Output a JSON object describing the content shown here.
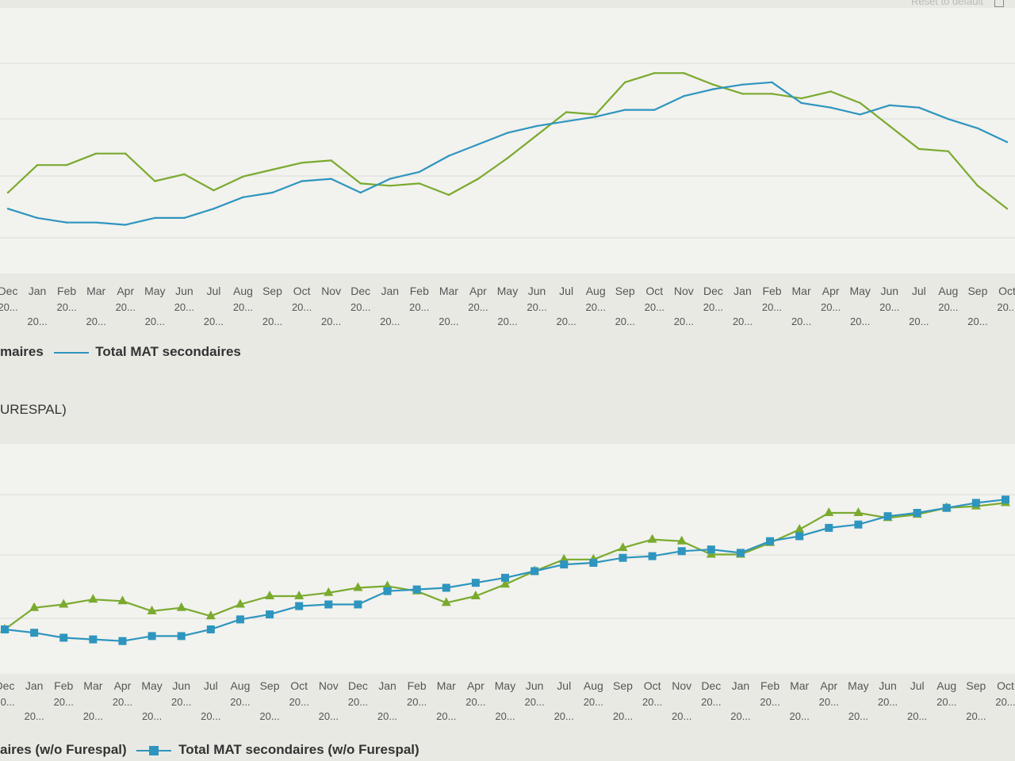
{
  "toolbar": {
    "reset_label": "Reset to default"
  },
  "colors": {
    "primary": "#7aaa2e",
    "secondary": "#2e95bf",
    "plot_bg": "#f2f2ee",
    "grid": "#dcdcd8"
  },
  "chart_data": [
    {
      "type": "line",
      "title": "",
      "markers": false,
      "categories": [
        {
          "month": "Dec",
          "year": "20..."
        },
        {
          "month": "Jan",
          "year": "20..."
        },
        {
          "month": "Feb",
          "year": "20..."
        },
        {
          "month": "Mar",
          "year": "20..."
        },
        {
          "month": "Apr",
          "year": "20..."
        },
        {
          "month": "May",
          "year": "20..."
        },
        {
          "month": "Jun",
          "year": "20..."
        },
        {
          "month": "Jul",
          "year": "20..."
        },
        {
          "month": "Aug",
          "year": "20..."
        },
        {
          "month": "Sep",
          "year": "20..."
        },
        {
          "month": "Oct",
          "year": "20..."
        },
        {
          "month": "Nov",
          "year": "20..."
        },
        {
          "month": "Dec",
          "year": "20..."
        },
        {
          "month": "Jan",
          "year": "20..."
        },
        {
          "month": "Feb",
          "year": "20..."
        },
        {
          "month": "Mar",
          "year": "20..."
        },
        {
          "month": "Apr",
          "year": "20..."
        },
        {
          "month": "May",
          "year": "20..."
        },
        {
          "month": "Jun",
          "year": "20..."
        },
        {
          "month": "Jul",
          "year": "20..."
        },
        {
          "month": "Aug",
          "year": "20..."
        },
        {
          "month": "Sep",
          "year": "20..."
        },
        {
          "month": "Oct",
          "year": "20..."
        },
        {
          "month": "Nov",
          "year": "20..."
        },
        {
          "month": "Dec",
          "year": "20..."
        },
        {
          "month": "Jan",
          "year": "20..."
        },
        {
          "month": "Feb",
          "year": "20..."
        },
        {
          "month": "Mar",
          "year": "20..."
        },
        {
          "month": "Apr",
          "year": "20..."
        },
        {
          "month": "May",
          "year": "20..."
        },
        {
          "month": "Jun",
          "year": "20..."
        },
        {
          "month": "Jul",
          "year": "20..."
        },
        {
          "month": "Aug",
          "year": "20..."
        },
        {
          "month": "Sep",
          "year": "20..."
        },
        {
          "month": "Oct",
          "year": "20..."
        }
      ],
      "series": [
        {
          "name": "Total MAT primaires",
          "legend_visible_text": "maires",
          "color": "#7aaa2e",
          "values": [
            30,
            42,
            42,
            47,
            47,
            35,
            38,
            31,
            37,
            40,
            43,
            44,
            34,
            33,
            34,
            29,
            36,
            45,
            55,
            65,
            64,
            78,
            82,
            82,
            77,
            73,
            73,
            71,
            74,
            69,
            59,
            49,
            48,
            33,
            23
          ]
        },
        {
          "name": "Total MAT secondaires",
          "legend_visible_text": "Total MAT secondaires",
          "color": "#2e95bf",
          "values": [
            23,
            19,
            17,
            17,
            16,
            19,
            19,
            23,
            28,
            30,
            35,
            36,
            30,
            36,
            39,
            46,
            51,
            56,
            59,
            61,
            63,
            66,
            66,
            72,
            75,
            77,
            78,
            69,
            67,
            64,
            68,
            67,
            62,
            58,
            52
          ]
        }
      ],
      "ylim": [
        0,
        100
      ],
      "grid": true,
      "legend": "bottom-left"
    },
    {
      "type": "line",
      "title": "(w/o FURESPAL)",
      "title_visible_text": "URESPAL)",
      "markers": true,
      "categories": [
        {
          "month": "Dec",
          "year": "20..."
        },
        {
          "month": "Jan",
          "year": "20..."
        },
        {
          "month": "Feb",
          "year": "20..."
        },
        {
          "month": "Mar",
          "year": "20..."
        },
        {
          "month": "Apr",
          "year": "20..."
        },
        {
          "month": "May",
          "year": "20..."
        },
        {
          "month": "Jun",
          "year": "20..."
        },
        {
          "month": "Jul",
          "year": "20..."
        },
        {
          "month": "Aug",
          "year": "20..."
        },
        {
          "month": "Sep",
          "year": "20..."
        },
        {
          "month": "Oct",
          "year": "20..."
        },
        {
          "month": "Nov",
          "year": "20..."
        },
        {
          "month": "Dec",
          "year": "20..."
        },
        {
          "month": "Jan",
          "year": "20..."
        },
        {
          "month": "Feb",
          "year": "20..."
        },
        {
          "month": "Mar",
          "year": "20..."
        },
        {
          "month": "Apr",
          "year": "20..."
        },
        {
          "month": "May",
          "year": "20..."
        },
        {
          "month": "Jun",
          "year": "20..."
        },
        {
          "month": "Jul",
          "year": "20..."
        },
        {
          "month": "Aug",
          "year": "20..."
        },
        {
          "month": "Sep",
          "year": "20..."
        },
        {
          "month": "Oct",
          "year": "20..."
        },
        {
          "month": "Nov",
          "year": "20..."
        },
        {
          "month": "Dec",
          "year": "20..."
        },
        {
          "month": "Jan",
          "year": "20..."
        },
        {
          "month": "Feb",
          "year": "20..."
        },
        {
          "month": "Mar",
          "year": "20..."
        },
        {
          "month": "Apr",
          "year": "20..."
        },
        {
          "month": "May",
          "year": "20..."
        },
        {
          "month": "Jun",
          "year": "20..."
        },
        {
          "month": "Jul",
          "year": "20..."
        },
        {
          "month": "Aug",
          "year": "20..."
        },
        {
          "month": "Sep",
          "year": "20..."
        },
        {
          "month": "Oct",
          "year": "20..."
        }
      ],
      "series": [
        {
          "name": "Total MAT primaires (w/o Furespal)",
          "legend_visible_text": "aires (w/o Furespal)",
          "color": "#7aaa2e",
          "marker": "triangle",
          "values": [
            10,
            23,
            25,
            28,
            27,
            21,
            23,
            18,
            25,
            30,
            30,
            32,
            35,
            36,
            33,
            26,
            30,
            37,
            45,
            52,
            52,
            59,
            64,
            63,
            55,
            55,
            62,
            70,
            80,
            80,
            77,
            79,
            83,
            84,
            86
          ]
        },
        {
          "name": "Total MAT secondaires (w/o Furespal)",
          "legend_visible_text": "Total MAT secondaires (w/o Furespal)",
          "color": "#2e95bf",
          "marker": "square",
          "values": [
            10,
            8,
            5,
            4,
            3,
            6,
            6,
            10,
            16,
            19,
            24,
            25,
            25,
            33,
            34,
            35,
            38,
            41,
            45,
            49,
            50,
            53,
            54,
            57,
            58,
            56,
            63,
            66,
            71,
            73,
            78,
            80,
            83,
            86,
            88
          ]
        }
      ],
      "ylim": [
        0,
        100
      ],
      "grid": true,
      "legend": "bottom-left"
    }
  ]
}
